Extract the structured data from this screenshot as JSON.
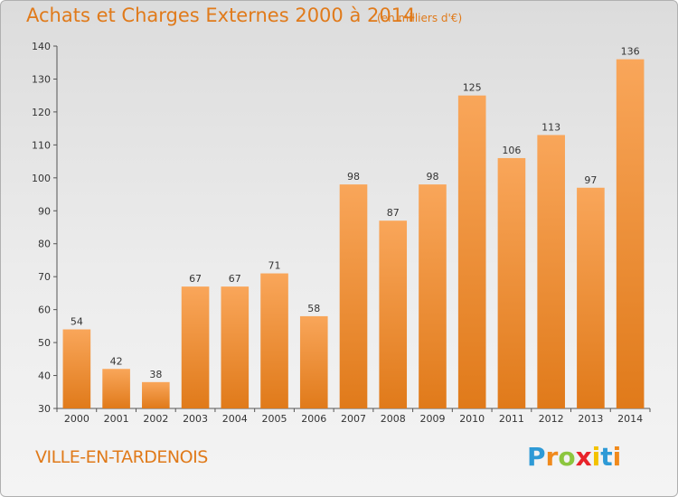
{
  "header": {
    "title": "Achats et Charges Externes 2000 à 2014",
    "subtitle": "(en milliers d'€)"
  },
  "footer": {
    "city": "VILLE-EN-TARDENOIS",
    "logo_letters": [
      "P",
      "r",
      "o",
      "x",
      "i",
      "t",
      "i"
    ],
    "logo_colors": [
      "#2e9ad6",
      "#f08a1c",
      "#8cc63f",
      "#e8232a",
      "#f3c200",
      "#2e9ad6",
      "#f08a1c"
    ]
  },
  "chart_data": {
    "type": "bar",
    "title": "Achats et Charges Externes 2000 à 2014",
    "subtitle": "(en milliers d'€)",
    "xlabel": "",
    "ylabel": "",
    "categories": [
      "2000",
      "2001",
      "2002",
      "2003",
      "2004",
      "2005",
      "2006",
      "2007",
      "2008",
      "2009",
      "2010",
      "2011",
      "2012",
      "2013",
      "2014"
    ],
    "values": [
      54,
      42,
      38,
      67,
      67,
      71,
      58,
      98,
      87,
      98,
      125,
      106,
      113,
      97,
      136
    ],
    "ylim": [
      30,
      140
    ],
    "yticks": [
      30,
      40,
      50,
      60,
      70,
      80,
      90,
      100,
      110,
      120,
      130,
      140
    ],
    "grid": false,
    "bar_color_top": "#f9a65a",
    "bar_color_bottom": "#e07a1a"
  }
}
